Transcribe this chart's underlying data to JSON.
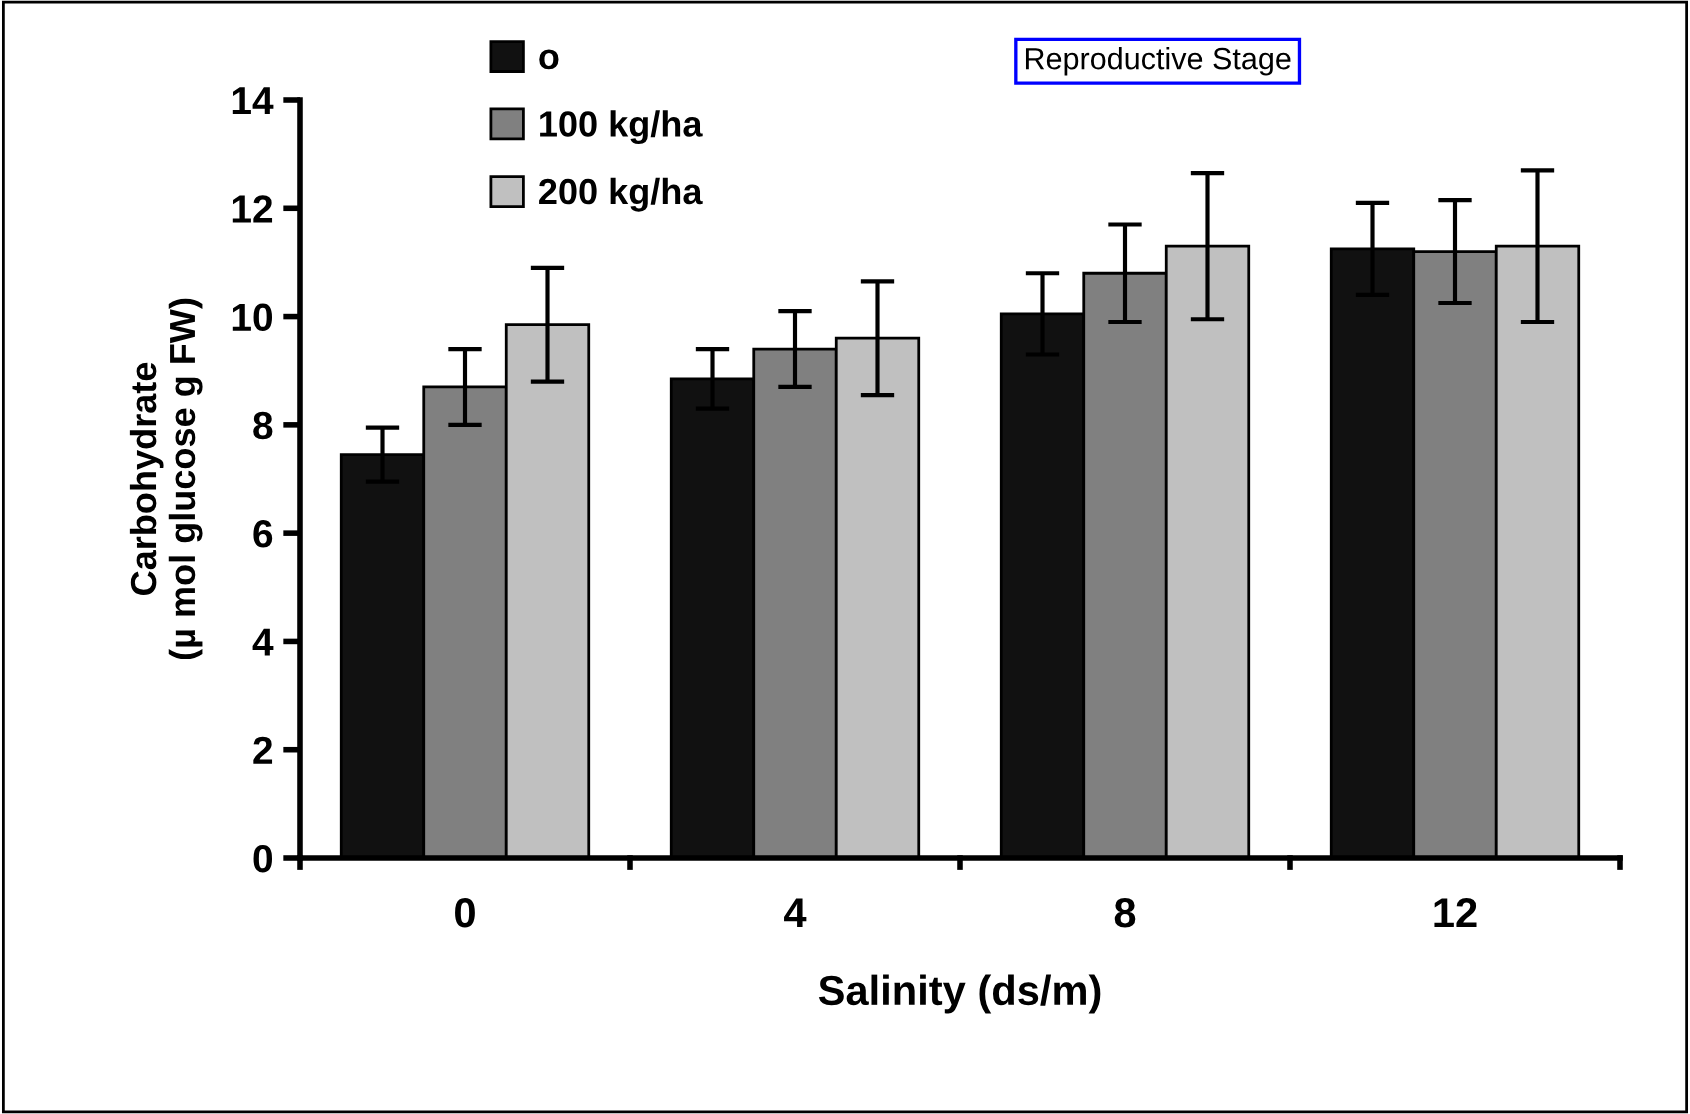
{
  "chart_data": {
    "type": "bar",
    "xlabel": "Salinity (ds/m)",
    "ylabel": "Carbohydrate\n(µ mol glucose g FW)",
    "categories": [
      "0",
      "4",
      "8",
      "12"
    ],
    "series": [
      {
        "name": "o",
        "color": "#111111",
        "values": [
          7.45,
          8.85,
          10.05,
          11.25
        ],
        "errors": [
          0.5,
          0.55,
          0.75,
          0.85
        ]
      },
      {
        "name": "100 kg/ha",
        "color": "#808080",
        "values": [
          8.7,
          9.4,
          10.8,
          11.2
        ],
        "errors": [
          0.7,
          0.7,
          0.9,
          0.95
        ]
      },
      {
        "name": "200 kg/ha",
        "color": "#c0c0c0",
        "values": [
          9.85,
          9.6,
          11.3,
          11.3
        ],
        "errors": [
          1.05,
          1.05,
          1.35,
          1.4
        ]
      }
    ],
    "ylim": [
      0,
      14
    ],
    "yticks": [
      0,
      2,
      4,
      6,
      8,
      10,
      12,
      14
    ],
    "grid": false,
    "legend": "top left",
    "annotations": [
      "Reproductive Stage"
    ]
  }
}
